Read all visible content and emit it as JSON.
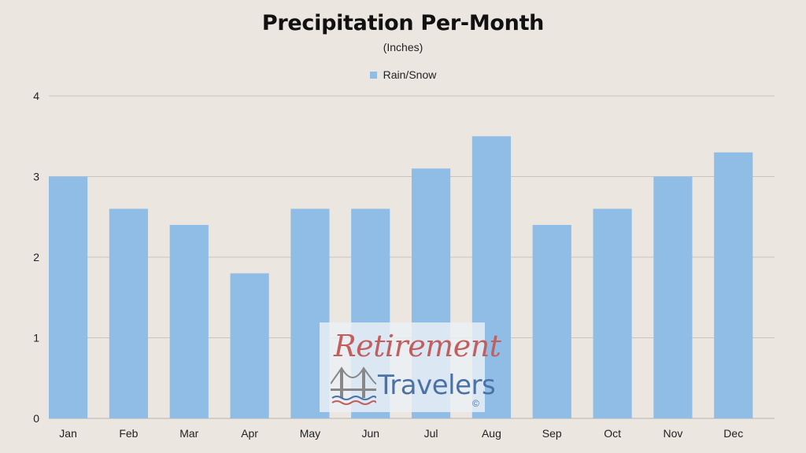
{
  "colors": {
    "background": "#ebe6e0",
    "bar": "#8fbde6",
    "grid": "#c9c4be",
    "text": "#222222"
  },
  "chart_data": {
    "type": "bar",
    "title": "Precipitation Per-Month",
    "subtitle": "(Inches)",
    "categories": [
      "Jan",
      "Feb",
      "Mar",
      "Apr",
      "May",
      "Jun",
      "Jul",
      "Aug",
      "Sep",
      "Oct",
      "Nov",
      "Dec"
    ],
    "series": [
      {
        "name": "Rain/Snow",
        "values": [
          3.0,
          2.6,
          2.4,
          1.8,
          2.6,
          2.6,
          3.1,
          3.5,
          2.4,
          2.6,
          3.0,
          3.3
        ]
      }
    ],
    "ylim": [
      0,
      4
    ],
    "yticks": [
      "0",
      "1",
      "2",
      "3",
      "4"
    ],
    "grid": true,
    "legend_position": "top-center"
  },
  "watermark": {
    "line1": "Retirement",
    "line2": "Travelers",
    "copyright": "©",
    "icon": "bridge-icon"
  }
}
